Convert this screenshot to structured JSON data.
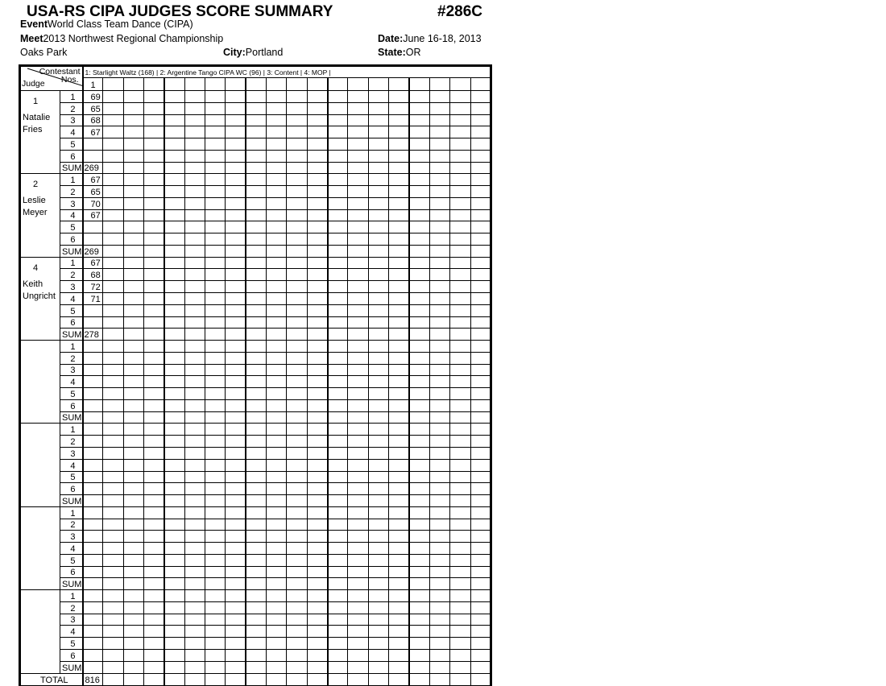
{
  "header": {
    "title": "USA-RS CIPA JUDGES SCORE SUMMARY",
    "number": "#286C",
    "event_label": "Event",
    "event": "World Class Team Dance  (CIPA)",
    "meet_label": "Meet",
    "meet": "2013 Northwest Regional Championship",
    "date_label": "Date:",
    "date": "June 16-18, 2013",
    "venue": "Oaks Park",
    "city_label": "City:",
    "city": "Portland",
    "state_label": "State:",
    "state": "OR"
  },
  "table": {
    "corner_top": "Contestant",
    "corner_nos": "Nos.",
    "corner_judge": "Judge",
    "contestants_line": "1: Starlight Waltz (168) | 2: Argentine Tango CIPA WC (96) | 3: Content  | 4: MOP |",
    "contestant_numbers": [
      "1"
    ],
    "row_labels": [
      "1",
      "2",
      "3",
      "4",
      "5",
      "6"
    ],
    "sum_label": "SUM",
    "total_label": "TOTAL",
    "total_values": [
      "816"
    ],
    "judges": [
      {
        "number": "1",
        "name": [
          "Natalie",
          "Fries"
        ],
        "scores": [
          "69",
          "65",
          "68",
          "67",
          "",
          ""
        ],
        "sum": "269"
      },
      {
        "number": "2",
        "name": [
          "Leslie",
          "Meyer"
        ],
        "scores": [
          "67",
          "65",
          "70",
          "67",
          "",
          ""
        ],
        "sum": "269"
      },
      {
        "number": "4",
        "name": [
          "Keith",
          "Ungricht"
        ],
        "scores": [
          "67",
          "68",
          "72",
          "71",
          "",
          ""
        ],
        "sum": "278"
      },
      {
        "number": "",
        "name": [],
        "scores": [
          "",
          "",
          "",
          "",
          "",
          ""
        ],
        "sum": ""
      },
      {
        "number": "",
        "name": [],
        "scores": [
          "",
          "",
          "",
          "",
          "",
          ""
        ],
        "sum": ""
      },
      {
        "number": "",
        "name": [],
        "scores": [
          "",
          "",
          "",
          "",
          "",
          ""
        ],
        "sum": ""
      },
      {
        "number": "",
        "name": [],
        "scores": [
          "",
          "",
          "",
          "",
          "",
          ""
        ],
        "sum": ""
      }
    ]
  }
}
